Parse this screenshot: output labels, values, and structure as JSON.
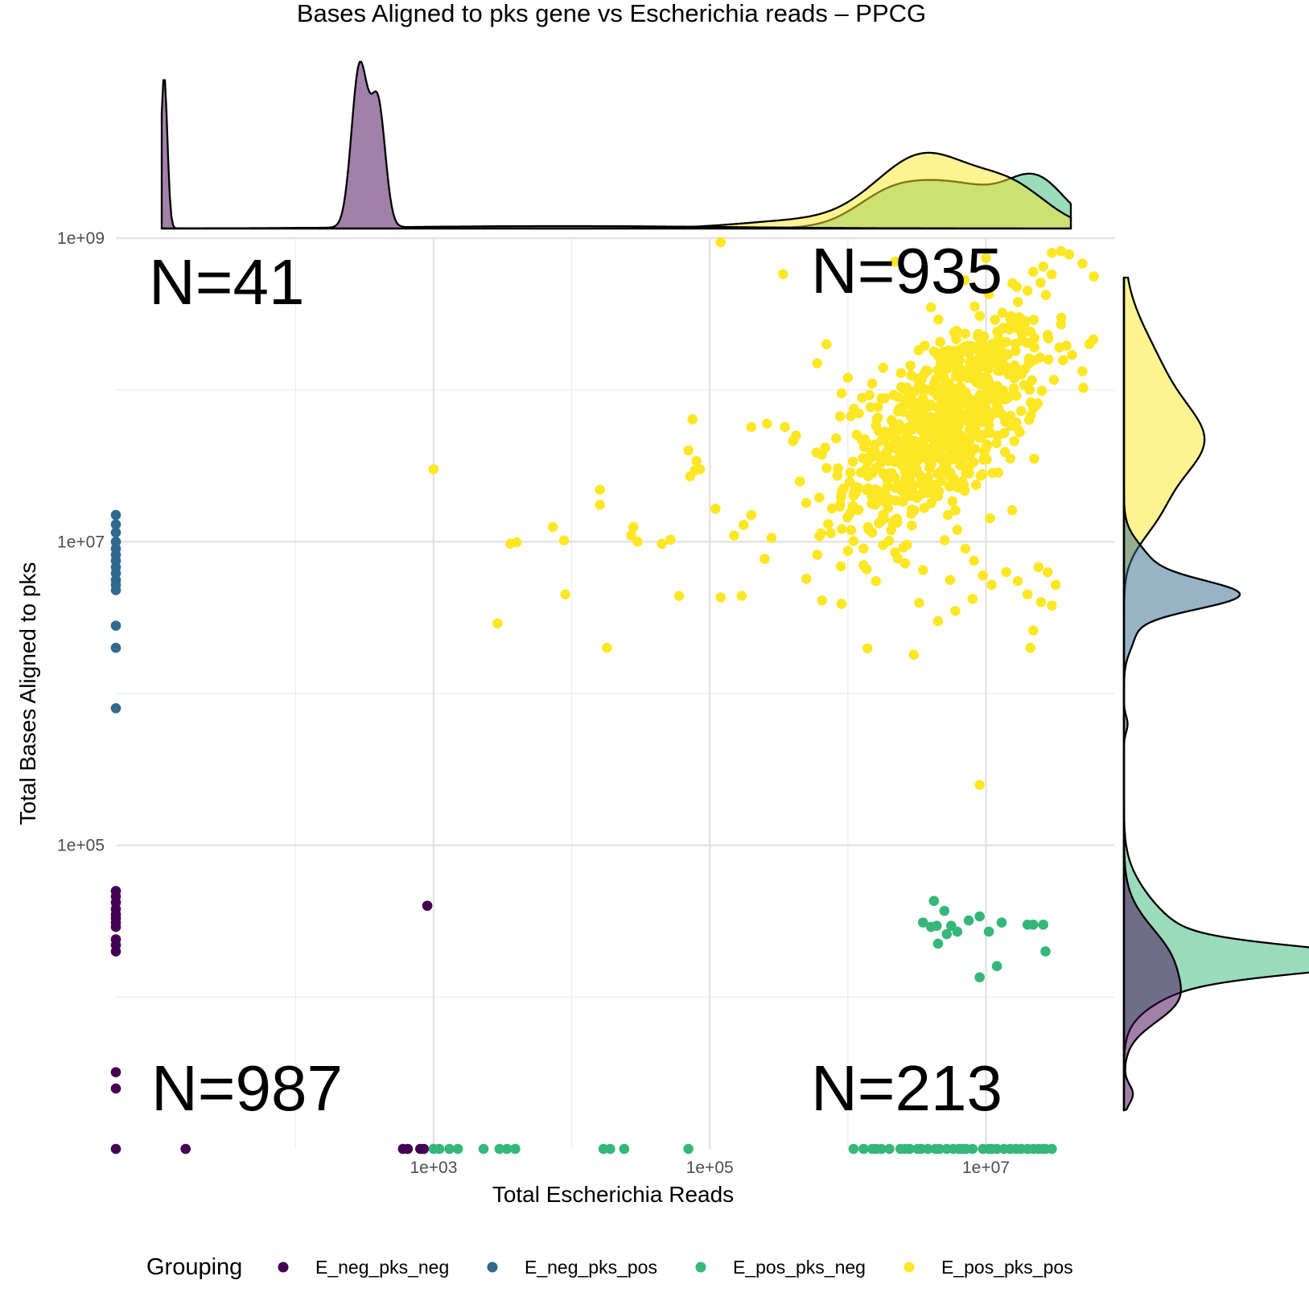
{
  "chart_data": {
    "type": "scatter",
    "title": "Bases Aligned to pks gene vs Escherichia reads – PPCG",
    "xlabel": "Total Escherichia Reads",
    "ylabel": "Total Bases Aligned to pks",
    "x_scale": "log10",
    "y_scale": "log10",
    "xlim": [
      5,
      85000000
    ],
    "ylim": [
      1000,
      1000000000
    ],
    "x_ticks": [
      "1e+03",
      "1e+05",
      "1e+07"
    ],
    "y_ticks": [
      "1e+05",
      "1e+07",
      "1e+09"
    ],
    "grid": true,
    "legend_position": "bottom",
    "legend_title": "Grouping",
    "annotations": {
      "top_left": "N=41",
      "top_right": "N=935",
      "bottom_left": "N=987",
      "bottom_right": "N=213"
    },
    "series": [
      {
        "name": "E_neg_pks_neg",
        "color": "#440154",
        "points": [
          [
            5,
            50000
          ],
          [
            5,
            46000
          ],
          [
            5,
            42000
          ],
          [
            5,
            38000
          ],
          [
            5,
            35000
          ],
          [
            5,
            33000
          ],
          [
            5,
            31000
          ],
          [
            5,
            29000
          ],
          [
            5,
            24000
          ],
          [
            5,
            22000
          ],
          [
            5,
            20000
          ],
          [
            5,
            3200
          ],
          [
            5,
            2500
          ],
          [
            5,
            1000
          ],
          [
            16,
            1000
          ],
          [
            600,
            1000
          ],
          [
            650,
            1000
          ],
          [
            800,
            1000
          ],
          [
            850,
            1000
          ],
          [
            900,
            40000
          ]
        ]
      },
      {
        "name": "E_neg_pks_pos",
        "color": "#31688e",
        "points": [
          [
            5,
            15000000
          ],
          [
            5,
            13000000
          ],
          [
            5,
            11500000
          ],
          [
            5,
            10000000
          ],
          [
            5,
            9000000
          ],
          [
            5,
            8200000
          ],
          [
            5,
            7500000
          ],
          [
            5,
            6800000
          ],
          [
            5,
            6200000
          ],
          [
            5,
            5600000
          ],
          [
            5,
            5200000
          ],
          [
            5,
            4800000
          ],
          [
            5,
            2800000
          ],
          [
            5,
            2000000
          ],
          [
            5,
            800000
          ]
        ]
      },
      {
        "name": "E_pos_pks_neg",
        "color": "#35b779",
        "points": [
          [
            1000,
            1000
          ],
          [
            1100,
            1000
          ],
          [
            1300,
            1000
          ],
          [
            1500,
            1000
          ],
          [
            2300,
            1000
          ],
          [
            3000,
            1000
          ],
          [
            3400,
            1000
          ],
          [
            3900,
            1000
          ],
          [
            17000,
            1000
          ],
          [
            19000,
            1000
          ],
          [
            24000,
            1000
          ],
          [
            70000,
            1000
          ],
          [
            1100000,
            1000
          ],
          [
            1300000,
            1000
          ],
          [
            1600000,
            1000
          ],
          [
            2600000,
            1000
          ],
          [
            3200000,
            1000
          ],
          [
            4300000,
            1000
          ],
          [
            8000000,
            1000
          ],
          [
            9500000,
            1000
          ],
          [
            12000000,
            1000
          ],
          [
            15000000,
            1000
          ],
          [
            18000000,
            1000
          ],
          [
            22000000,
            1000
          ],
          [
            26000000,
            1000
          ],
          [
            30000000,
            1000
          ],
          [
            2000000,
            1000
          ],
          [
            2400000,
            1000
          ],
          [
            2800000,
            1000
          ],
          [
            3400000,
            1000
          ],
          [
            3800000,
            1000
          ],
          [
            4600000,
            1000
          ],
          [
            5200000,
            1000
          ],
          [
            5800000,
            1000
          ],
          [
            6400000,
            1000
          ],
          [
            7200000,
            1000
          ],
          [
            10500000,
            1000
          ],
          [
            13500000,
            1000
          ],
          [
            16500000,
            1000
          ],
          [
            20000000,
            1000
          ],
          [
            24000000,
            1000
          ],
          [
            1500000,
            1000
          ],
          [
            1750000,
            1000
          ],
          [
            6800000,
            1000
          ],
          [
            11000000,
            1000
          ],
          [
            27000000,
            1000
          ],
          [
            13000000,
            31000
          ],
          [
            3500000,
            31000
          ],
          [
            4000000,
            29000
          ],
          [
            4400000,
            29500
          ],
          [
            5600000,
            29500
          ],
          [
            7500000,
            32000
          ],
          [
            9000000,
            34000
          ],
          [
            5000000,
            37000
          ],
          [
            4200000,
            43000
          ],
          [
            6200000,
            27000
          ],
          [
            10500000,
            27000
          ],
          [
            4500000,
            22500
          ],
          [
            5200000,
            26000
          ],
          [
            20000000,
            30000
          ],
          [
            22000000,
            30000
          ],
          [
            26000000,
            30000
          ],
          [
            27000000,
            20000
          ],
          [
            12000000,
            16000
          ],
          [
            9000000,
            13500
          ]
        ]
      },
      {
        "name": "E_pos_pks_pos",
        "color": "#fde725",
        "points": [
          [
            120000,
            940000000
          ],
          [
            1000,
            30000000
          ],
          [
            3600,
            9700000
          ],
          [
            4000,
            9900000
          ],
          [
            2900,
            2900000
          ],
          [
            9000,
            4500000
          ],
          [
            18000,
            2000000
          ],
          [
            7300,
            12500000
          ],
          [
            8800,
            10200000
          ],
          [
            16000,
            22000000
          ],
          [
            16000,
            17500000
          ],
          [
            28000,
            12500000
          ],
          [
            27000,
            11000000
          ],
          [
            30000,
            10000000
          ],
          [
            45000,
            9700000
          ],
          [
            52000,
            10300000
          ],
          [
            70000,
            40000000
          ],
          [
            80000,
            34000000
          ],
          [
            72000,
            27000000
          ],
          [
            78000,
            29500000
          ],
          [
            75000,
            64000000
          ],
          [
            85000,
            30000000
          ],
          [
            110000,
            16500000
          ],
          [
            150000,
            11000000
          ],
          [
            200000,
            15000000
          ],
          [
            200000,
            57000000
          ],
          [
            260000,
            60000000
          ],
          [
            280000,
            10600000
          ],
          [
            250000,
            7700000
          ],
          [
            170000,
            4400000
          ],
          [
            120000,
            4300000
          ],
          [
            60000,
            4400000
          ],
          [
            340000,
            580000000
          ],
          [
            350000,
            57000000
          ],
          [
            400000,
            46000000
          ],
          [
            420000,
            50000000
          ],
          [
            450000,
            25000000
          ],
          [
            500000,
            18000000
          ],
          [
            600000,
            8200000
          ],
          [
            500000,
            5700000
          ],
          [
            650000,
            4100000
          ],
          [
            900000,
            3900000
          ],
          [
            1000000,
            8700000
          ],
          [
            1100000,
            10100000
          ],
          [
            1300000,
            7000000
          ],
          [
            1600000,
            5500000
          ],
          [
            1400000,
            12500000
          ],
          [
            1800000,
            15000000
          ],
          [
            2000000,
            19000000
          ],
          [
            2500000,
            40000000
          ],
          [
            3000000,
            30000000
          ],
          [
            3600000,
            60000000
          ],
          [
            4000000,
            80000000
          ],
          [
            5000000,
            100000000
          ],
          [
            6000000,
            50000000
          ],
          [
            7000000,
            90000000
          ],
          [
            8000000,
            70000000
          ],
          [
            9000000,
            150000000
          ],
          [
            10000000,
            120000000
          ],
          [
            11000000,
            200000000
          ],
          [
            13000000,
            250000000
          ],
          [
            15000000,
            300000000
          ],
          [
            17000000,
            380000000
          ],
          [
            20000000,
            450000000
          ],
          [
            22000000,
            600000000
          ],
          [
            26000000,
            650000000
          ],
          [
            30000000,
            800000000
          ],
          [
            35000000,
            820000000
          ],
          [
            40000000,
            780000000
          ],
          [
            50000000,
            680000000
          ],
          [
            28000000,
            230000000
          ],
          [
            35000000,
            270000000
          ],
          [
            42000000,
            170000000
          ],
          [
            2200000,
            700000000
          ],
          [
            4000000,
            350000000
          ],
          [
            7000000,
            530000000
          ],
          [
            10000000,
            740000000
          ],
          [
            1000000,
            120000000
          ],
          [
            700000,
            200000000
          ],
          [
            600000,
            150000000
          ],
          [
            900000,
            95000000
          ],
          [
            1200000,
            70000000
          ],
          [
            1500000,
            110000000
          ],
          [
            1800000,
            140000000
          ],
          [
            2300000,
            90000000
          ],
          [
            2700000,
            55000000
          ],
          [
            3200000,
            35000000
          ],
          [
            3800000,
            25000000
          ],
          [
            4500000,
            20000000
          ],
          [
            5300000,
            15000000
          ],
          [
            6200000,
            12000000
          ],
          [
            7100000,
            9000000
          ],
          [
            8200000,
            7500000
          ],
          [
            9500000,
            6000000
          ],
          [
            11000000,
            5200000
          ],
          [
            14000000,
            6300000
          ],
          [
            17000000,
            5500000
          ],
          [
            20000000,
            4500000
          ],
          [
            25000000,
            4000000
          ],
          [
            30000000,
            3800000
          ],
          [
            32000000,
            5200000
          ],
          [
            28000000,
            6300000
          ],
          [
            24000000,
            6800000
          ],
          [
            22000000,
            2600000
          ],
          [
            21000000,
            2000000
          ],
          [
            3000000,
            1800000
          ],
          [
            4500000,
            3000000
          ],
          [
            6000000,
            3500000
          ],
          [
            8000000,
            4200000
          ],
          [
            5500000,
            5600000
          ],
          [
            3500000,
            6500000
          ],
          [
            2600000,
            7200000
          ],
          [
            2200000,
            8500000
          ],
          [
            1800000,
            9500000
          ],
          [
            1500000,
            11500000
          ],
          [
            9000000,
            250000
          ]
        ],
        "cloud": {
          "x_center": 5000000,
          "y_center": 60000000,
          "count": 720
        }
      }
    ]
  }
}
